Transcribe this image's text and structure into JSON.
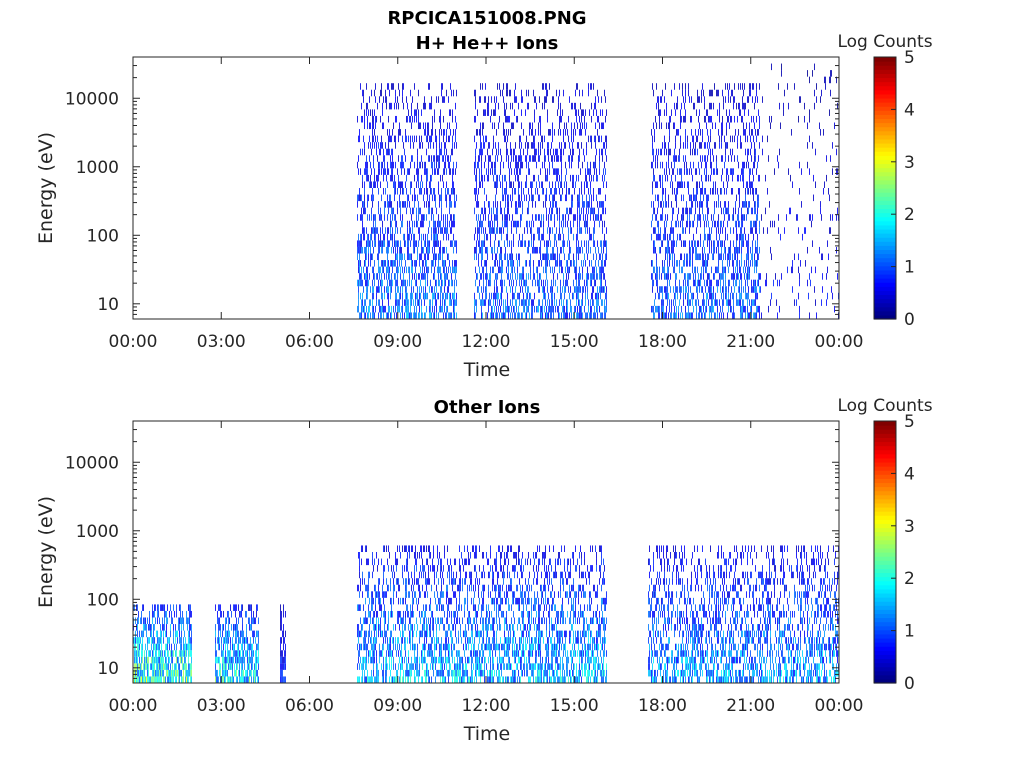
{
  "figure": {
    "filename_title": "RPCICA151008.PNG"
  },
  "chart_data": [
    {
      "type": "heatmap",
      "title": "H+ He++ Ions",
      "xlabel": "Time",
      "ylabel": "Energy (eV)",
      "x_ticks": [
        "00:00",
        "03:00",
        "06:00",
        "09:00",
        "12:00",
        "15:00",
        "18:00",
        "21:00",
        "00:00"
      ],
      "x_range_hours": [
        0,
        24
      ],
      "y_scale": "log",
      "y_range": [
        6,
        40000
      ],
      "y_ticks": [
        10,
        100,
        1000,
        10000
      ],
      "y_tick_labels": [
        "10",
        "100",
        "1000",
        "10000"
      ],
      "colorbar": {
        "label": "Log Counts",
        "range": [
          0,
          5
        ],
        "ticks": [
          "0",
          "1",
          "2",
          "3",
          "4",
          "5"
        ],
        "colormap": "jet"
      },
      "activity": [
        {
          "start_hour": 7.6,
          "end_hour": 11.0,
          "max_energy": 15000,
          "density": 0.55,
          "level": 0.75
        },
        {
          "start_hour": 11.6,
          "end_hour": 16.1,
          "max_energy": 15000,
          "density": 0.5,
          "level": 0.7
        },
        {
          "start_hour": 17.6,
          "end_hour": 21.3,
          "max_energy": 15000,
          "density": 0.5,
          "level": 0.7
        },
        {
          "start_hour": 21.3,
          "end_hour": 24.0,
          "max_energy": 30000,
          "density": 0.08,
          "level": 0.4
        }
      ]
    },
    {
      "type": "heatmap",
      "title": "Other Ions",
      "xlabel": "Time",
      "ylabel": "Energy (eV)",
      "x_ticks": [
        "00:00",
        "03:00",
        "06:00",
        "09:00",
        "12:00",
        "15:00",
        "18:00",
        "21:00",
        "00:00"
      ],
      "x_range_hours": [
        0,
        24
      ],
      "y_scale": "log",
      "y_range": [
        6,
        40000
      ],
      "y_ticks": [
        10,
        100,
        1000,
        10000
      ],
      "y_tick_labels": [
        "10",
        "100",
        "1000",
        "10000"
      ],
      "colorbar": {
        "label": "Log Counts",
        "range": [
          0,
          5
        ],
        "ticks": [
          "0",
          "1",
          "2",
          "3",
          "4",
          "5"
        ],
        "colormap": "jet"
      },
      "activity": [
        {
          "start_hour": 0.0,
          "end_hour": 2.0,
          "max_energy": 80,
          "density": 0.9,
          "level": 1.4
        },
        {
          "start_hour": 2.8,
          "end_hour": 4.3,
          "max_energy": 80,
          "density": 0.85,
          "level": 1.2
        },
        {
          "start_hour": 5.0,
          "end_hour": 5.2,
          "max_energy": 80,
          "density": 0.9,
          "level": 0.5
        },
        {
          "start_hour": 7.6,
          "end_hour": 16.1,
          "max_energy": 600,
          "density": 0.6,
          "level": 1.0
        },
        {
          "start_hour": 17.5,
          "end_hour": 24.0,
          "max_energy": 600,
          "density": 0.55,
          "level": 0.9
        }
      ]
    }
  ]
}
